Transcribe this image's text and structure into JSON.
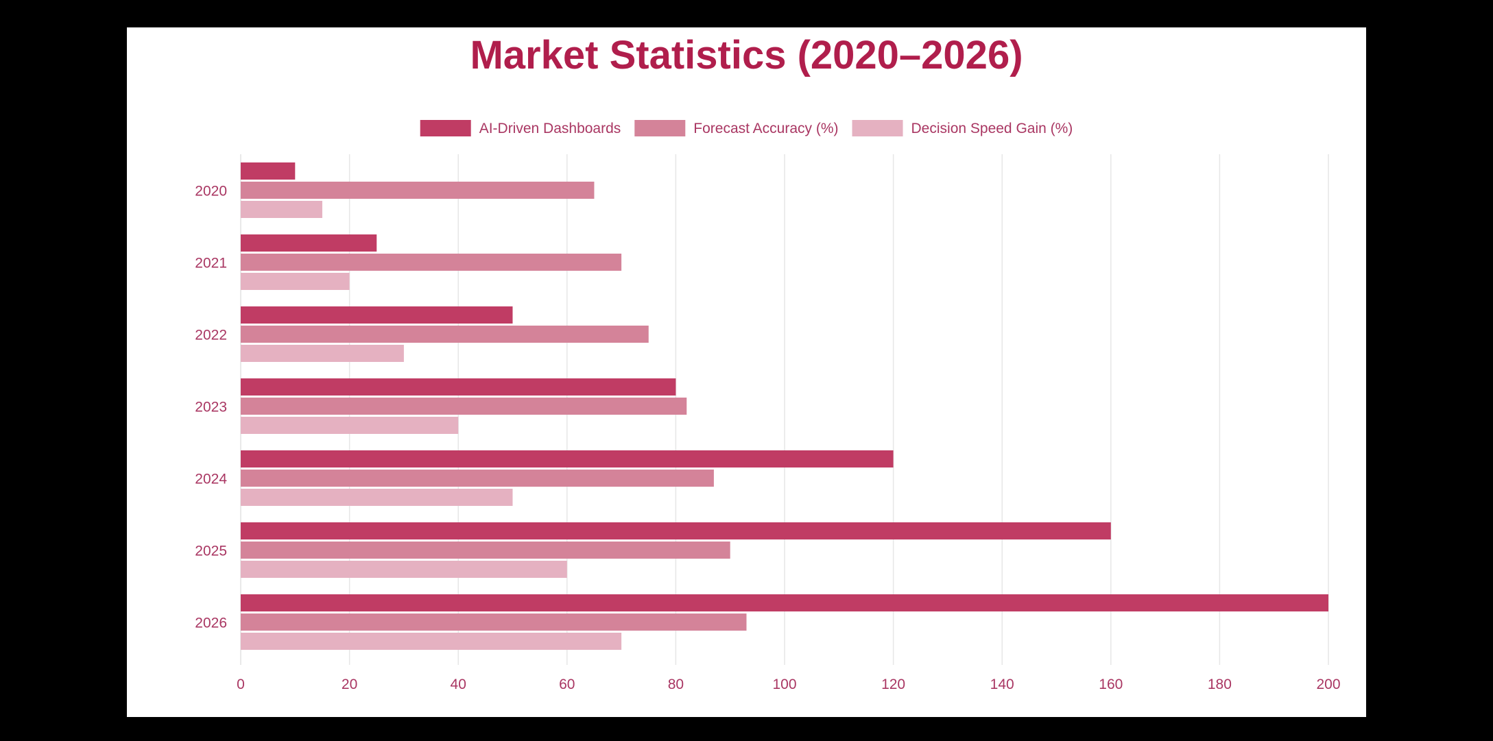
{
  "colors": {
    "page_background": "#000000",
    "card_background": "#ffffff",
    "title": "#b01e4c",
    "axis_text": "#a93662",
    "grid": "#e6e6e6",
    "series": [
      "#c03c64",
      "#d48399",
      "#e5b1c1"
    ]
  },
  "chart_data": {
    "type": "bar",
    "orientation": "horizontal",
    "title": "Market Statistics (2020–2026)",
    "xlabel": "",
    "ylabel": "",
    "categories": [
      "2020",
      "2021",
      "2022",
      "2023",
      "2024",
      "2025",
      "2026"
    ],
    "series": [
      {
        "name": "AI-Driven Dashboards",
        "values": [
          10,
          25,
          50,
          80,
          120,
          160,
          200
        ]
      },
      {
        "name": "Forecast Accuracy (%)",
        "values": [
          65,
          70,
          75,
          82,
          87,
          90,
          93
        ]
      },
      {
        "name": "Decision Speed Gain (%)",
        "values": [
          15,
          20,
          30,
          40,
          50,
          60,
          70
        ]
      }
    ],
    "xlim": [
      0,
      200
    ],
    "xticks": [
      0,
      20,
      40,
      60,
      80,
      100,
      120,
      140,
      160,
      180,
      200
    ],
    "grid": true,
    "legend_position": "top-center"
  }
}
